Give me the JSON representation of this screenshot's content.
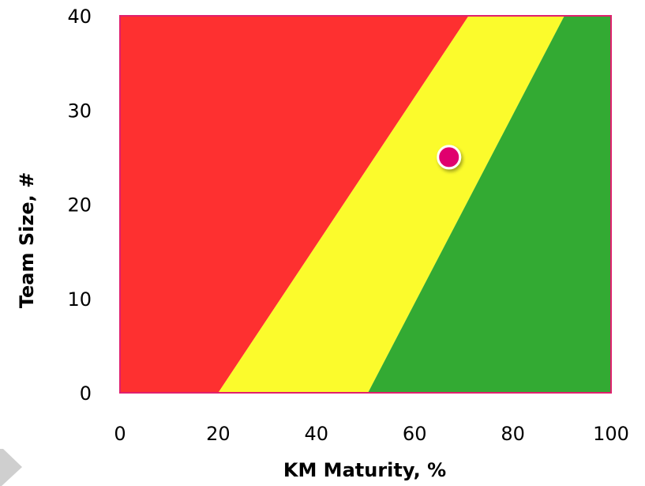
{
  "chart_data": {
    "type": "area",
    "title": "",
    "xlabel": "KM Maturity, %",
    "ylabel": "Team Size, #",
    "xlim": [
      0,
      100
    ],
    "ylim": [
      0,
      40
    ],
    "x_ticks": [
      "0",
      "20",
      "40",
      "60",
      "80",
      "100"
    ],
    "y_ticks": [
      "0",
      "10",
      "20",
      "30",
      "40"
    ],
    "grid": false,
    "legend": "none",
    "regions": [
      {
        "color": "#fe3030",
        "polygon": [
          [
            0,
            0
          ],
          [
            20,
            0
          ],
          [
            71,
            40
          ],
          [
            0,
            40
          ]
        ]
      },
      {
        "color": "#fbfb2c",
        "polygon": [
          [
            20,
            0
          ],
          [
            50.5,
            0
          ],
          [
            90.5,
            40
          ],
          [
            71,
            40
          ]
        ]
      },
      {
        "color": "#33aa33",
        "polygon": [
          [
            50.5,
            0
          ],
          [
            100,
            0
          ],
          [
            100,
            40
          ],
          [
            90.5,
            40
          ]
        ]
      }
    ],
    "points": [
      {
        "x": 67,
        "y": 25,
        "color": "#e0006e"
      }
    ],
    "frame_color": "#e0206e"
  }
}
